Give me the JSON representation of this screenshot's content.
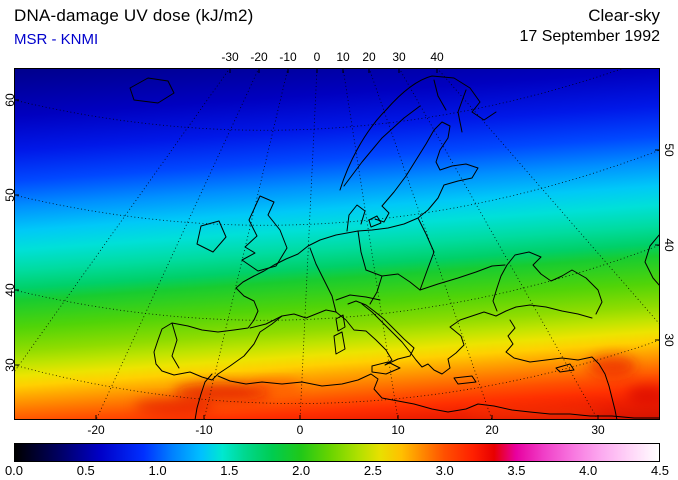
{
  "header": {
    "title": "DNA-damage UV dose (kJ/m2)",
    "source": "MSR - KNMI",
    "condition": "Clear-sky",
    "date": "17 September 1992"
  },
  "colors": {
    "source_text": "#0000cc",
    "title_text": "#000000",
    "frame": "#000000"
  },
  "map_axes": {
    "top": [
      "-30",
      "-20",
      "-10",
      "0",
      "10",
      "20",
      "30",
      "40"
    ],
    "bottom": [
      "-20",
      "-10",
      "0",
      "10",
      "20",
      "30"
    ],
    "left": [
      "60",
      "50",
      "40",
      "30"
    ],
    "right": [
      "50",
      "40",
      "30"
    ]
  },
  "colorbar": {
    "min": 0.0,
    "max": 4.5,
    "labels": [
      "0.0",
      "0.5",
      "1.0",
      "1.5",
      "2.0",
      "2.5",
      "3.0",
      "3.5",
      "4.0",
      "4.5"
    ],
    "stops": [
      [
        0.0,
        "#000000"
      ],
      [
        0.067,
        "#000060"
      ],
      [
        0.133,
        "#0000c8"
      ],
      [
        0.2,
        "#0030ff"
      ],
      [
        0.244,
        "#0080ff"
      ],
      [
        0.289,
        "#00c0ff"
      ],
      [
        0.322,
        "#00e8d0"
      ],
      [
        0.356,
        "#00d890"
      ],
      [
        0.4,
        "#00cc50"
      ],
      [
        0.444,
        "#20c818"
      ],
      [
        0.489,
        "#68d400"
      ],
      [
        0.533,
        "#b0e000"
      ],
      [
        0.567,
        "#e8e000"
      ],
      [
        0.6,
        "#ffc000"
      ],
      [
        0.633,
        "#ff8800"
      ],
      [
        0.667,
        "#ff5000"
      ],
      [
        0.711,
        "#ff2000"
      ],
      [
        0.744,
        "#e80000"
      ],
      [
        0.778,
        "#e800a0"
      ],
      [
        0.822,
        "#f040c8"
      ],
      [
        0.867,
        "#f878e0"
      ],
      [
        0.911,
        "#fcaaf0"
      ],
      [
        0.956,
        "#ffd6f8"
      ],
      [
        1.0,
        "#ffffff"
      ]
    ]
  },
  "chart_data": {
    "type": "heatmap",
    "title": "DNA-damage UV dose (kJ/m2)",
    "subtitle": "Clear-sky, 17 September 1992",
    "source": "MSR - KNMI",
    "units": "kJ/m2",
    "scale_range": [
      0.0,
      4.5
    ],
    "lon_ticks": [
      -30,
      -20,
      -10,
      0,
      10,
      20,
      30,
      40
    ],
    "lat_ticks": [
      30,
      40,
      50,
      60
    ],
    "region": "Europe and North Africa",
    "field_summary": "Clear-sky DNA-damage UV dose rises from about 0.5 kJ/m2 (dark blue) near 60N Scandinavia, through ~1.2-1.5 (cyan) over Britain and central Europe, ~2.0 (green) over France and the Balkans, ~2.5 (yellow) over Iberia and the Mediterranean, to ~3.0 kJ/m2 (orange-red) across North Africa and the Middle East",
    "field_gradient_stops": [
      [
        0.0,
        "#000078"
      ],
      [
        0.1,
        "#000090"
      ],
      [
        0.2,
        "#0000c0"
      ],
      [
        0.28,
        "#0018e8"
      ],
      [
        0.35,
        "#0048ff"
      ],
      [
        0.41,
        "#0090ff"
      ],
      [
        0.465,
        "#00c8f8"
      ],
      [
        0.51,
        "#00e0d8"
      ],
      [
        0.558,
        "#00dca0"
      ],
      [
        0.6,
        "#00d068"
      ],
      [
        0.628,
        "#18cc30"
      ],
      [
        0.69,
        "#50d408"
      ],
      [
        0.744,
        "#90dc00"
      ],
      [
        0.775,
        "#c0e400"
      ],
      [
        0.802,
        "#ece400"
      ],
      [
        0.825,
        "#ffd000"
      ],
      [
        0.849,
        "#ffa800"
      ],
      [
        0.88,
        "#ff7800"
      ],
      [
        0.907,
        "#ff5000"
      ],
      [
        0.935,
        "#ff3000"
      ],
      [
        0.96,
        "#f02000"
      ],
      [
        1.0,
        "#d81400"
      ]
    ]
  }
}
